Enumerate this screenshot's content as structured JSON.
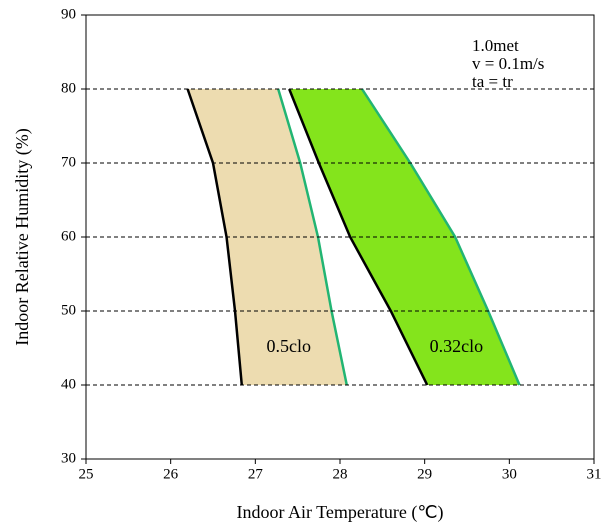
{
  "chart_data": {
    "type": "zone",
    "x_label": "Indoor Air Temperature (℃)",
    "y_label": "Indoor Relative Humidity (%)",
    "annotations": [
      "1.0met",
      "v = 0.1m/s",
      "ta = tr"
    ],
    "xlim": [
      25,
      31
    ],
    "xticks": [
      25,
      26,
      27,
      28,
      29,
      30,
      31
    ],
    "ylim": [
      30,
      90
    ],
    "yticks": [
      30,
      40,
      50,
      60,
      70,
      80,
      90
    ],
    "grid": true,
    "overlap_color": "#b9e52a",
    "series": [
      {
        "name": "0.5clo",
        "color": "#eddcb0",
        "left_color": "#000000",
        "right_color": "#22b573",
        "y": [
          80,
          70,
          60,
          50,
          40
        ],
        "left": [
          26.2,
          26.5,
          26.66,
          26.76,
          26.84
        ],
        "right": [
          27.27,
          27.53,
          27.74,
          27.9,
          28.08
        ]
      },
      {
        "name": "0.32clo",
        "color": "#84e41c",
        "left_color": "#000000",
        "right_color": "#22b573",
        "y": [
          80,
          70,
          60,
          50,
          40
        ],
        "left": [
          27.4,
          27.75,
          28.12,
          28.6,
          29.03
        ],
        "right": [
          28.26,
          28.83,
          29.36,
          29.75,
          30.12
        ]
      }
    ]
  }
}
